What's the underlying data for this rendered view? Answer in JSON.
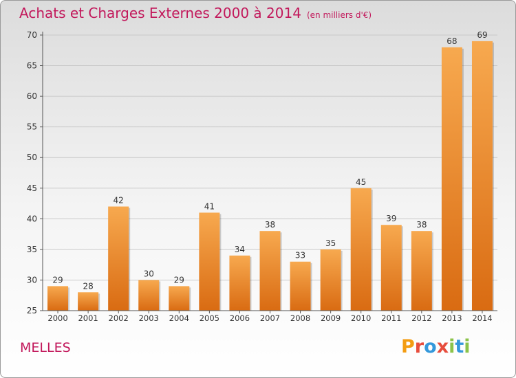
{
  "header": {
    "title": "Achats et Charges Externes 2000 à 2014",
    "unit": "(en milliers d'€)"
  },
  "footer": {
    "commune": "MELLES",
    "brand": "Proxiti",
    "brand_letter_colors": [
      "#f39c12",
      "#e74c3c",
      "#3498db",
      "#e74c3c",
      "#8bc34a",
      "#3498db",
      "#8bc34a"
    ]
  },
  "colors": {
    "bar_top": "#f7a94f",
    "bar_bottom": "#d96b12",
    "title": "#c2185b",
    "grid": "#c8c8c8",
    "axis": "#555555"
  },
  "chart_data": {
    "type": "bar",
    "title": "Achats et Charges Externes 2000 à 2014",
    "subtitle": "(en milliers d'€)",
    "categories": [
      "2000",
      "2001",
      "2002",
      "2003",
      "2004",
      "2005",
      "2006",
      "2007",
      "2008",
      "2009",
      "2010",
      "2011",
      "2012",
      "2013",
      "2014"
    ],
    "values": [
      29,
      28,
      42,
      30,
      29,
      41,
      34,
      38,
      33,
      35,
      45,
      39,
      38,
      68,
      69
    ],
    "data_labels": [
      "29",
      "28",
      "42",
      "30",
      "29",
      "41",
      "34",
      "38",
      "33",
      "35",
      "45",
      "39",
      "38",
      "68",
      "69"
    ],
    "ylim": [
      25,
      70
    ],
    "yticks": [
      25,
      30,
      35,
      40,
      45,
      50,
      55,
      60,
      65,
      70
    ],
    "ytick_labels": [
      "25",
      "30",
      "35",
      "40",
      "45",
      "50",
      "55",
      "60",
      "65",
      "70"
    ],
    "grid": true,
    "legend": "none"
  }
}
